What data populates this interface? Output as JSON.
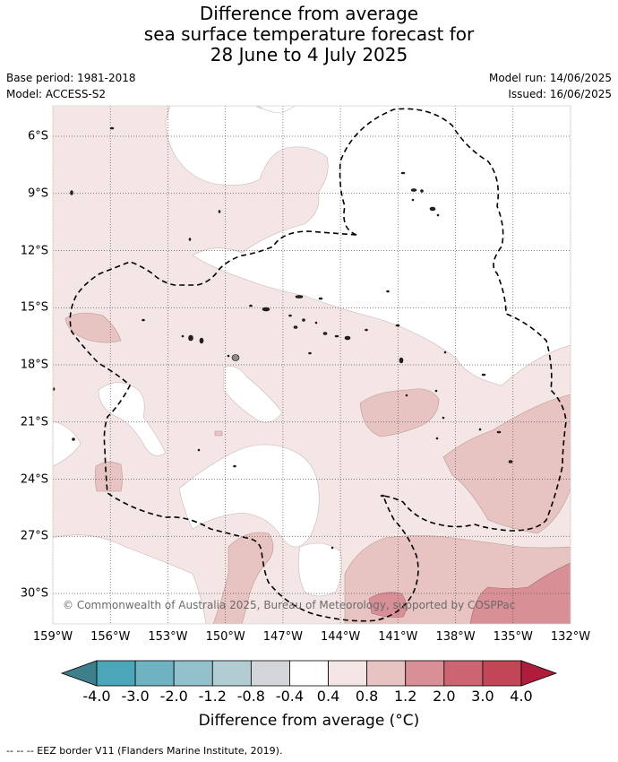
{
  "title": {
    "line1": "Difference from average",
    "line2": "sea surface temperature forecast for",
    "line3": "28 June to 4 July 2025"
  },
  "meta": {
    "base_period": "Base period: 1981-2018",
    "model": "Model: ACCESS-S2",
    "model_run": "Model run: 14/06/2025",
    "issued": "Issued: 16/06/2025"
  },
  "map": {
    "lon_range": [
      -159,
      -132
    ],
    "lat_range": [
      -31.6,
      -4.4
    ],
    "lat_ticks": [
      "6°S",
      "9°S",
      "12°S",
      "15°S",
      "18°S",
      "21°S",
      "24°S",
      "27°S",
      "30°S"
    ],
    "lat_values": [
      -6,
      -9,
      -12,
      -15,
      -18,
      -21,
      -24,
      -27,
      -30
    ],
    "lon_ticks": [
      "159°W",
      "156°W",
      "153°W",
      "150°W",
      "147°W",
      "144°W",
      "141°W",
      "138°W",
      "135°W",
      "132°W"
    ],
    "lon_values": [
      -159,
      -156,
      -153,
      -150,
      -147,
      -144,
      -141,
      -138,
      -135,
      -132
    ],
    "grid": true,
    "copyright": "© Commonwealth of Australia 2025, Bureau of Meteorology, supported by COSPPac",
    "eez_border": "dashed"
  },
  "colorbar": {
    "labels": [
      "-4.0",
      "-3.0",
      "-2.0",
      "-1.2",
      "-0.8",
      "-0.4",
      "0.4",
      "0.8",
      "1.2",
      "2.0",
      "3.0",
      "4.0"
    ],
    "colors": [
      "#3e7f8c",
      "#4aa6b8",
      "#6fb3c2",
      "#92c1cc",
      "#b1cdd2",
      "#d2d6d8",
      "#ffffff",
      "#f4e6e5",
      "#e7c4c1",
      "#d88f96",
      "#cc6472",
      "#c34657",
      "#b01c3c"
    ],
    "title": "Difference from average (°C)"
  },
  "footer": "--  --  -- EEZ border V11 (Flanders Marine Institute, 2019)."
}
